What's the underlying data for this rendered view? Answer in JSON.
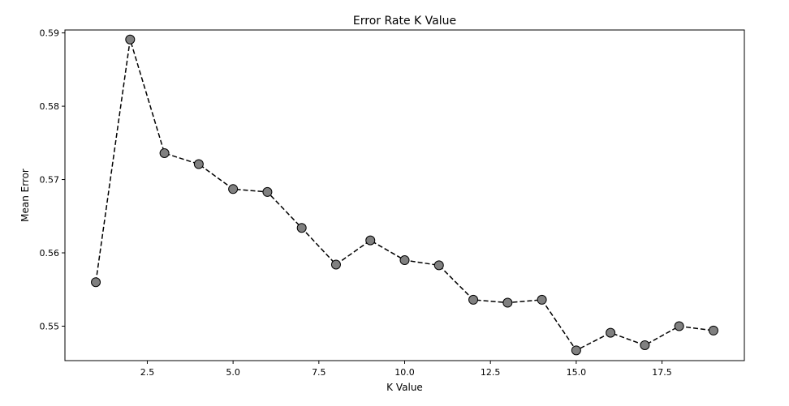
{
  "chart_data": {
    "type": "line",
    "title": "Error Rate K Value",
    "xlabel": "K Value",
    "ylabel": "Mean Error",
    "x": [
      1,
      2,
      3,
      4,
      5,
      6,
      7,
      8,
      9,
      10,
      11,
      12,
      13,
      14,
      15,
      16,
      17,
      18,
      19
    ],
    "series": [
      {
        "values": [
          0.556,
          0.5891,
          0.5736,
          0.5721,
          0.5687,
          0.5683,
          0.5634,
          0.5584,
          0.5617,
          0.559,
          0.5583,
          0.5536,
          0.5532,
          0.5536,
          0.5467,
          0.5491,
          0.5474,
          0.55,
          0.5494
        ],
        "line_style": "dashed",
        "line_color": "#000000",
        "marker": "circle",
        "marker_face_color": "#808080",
        "marker_edge_color": "#000000"
      }
    ],
    "xlim": [
      0.1,
      19.9
    ],
    "ylim": [
      0.5453,
      0.5904
    ],
    "xticks": [
      2.5,
      5.0,
      7.5,
      10.0,
      12.5,
      15.0,
      17.5
    ],
    "xtick_labels": [
      "2.5",
      "5.0",
      "7.5",
      "10.0",
      "12.5",
      "15.0",
      "17.5"
    ],
    "yticks": [
      0.55,
      0.56,
      0.57,
      0.58,
      0.59
    ],
    "ytick_labels": [
      "0.55",
      "0.56",
      "0.57",
      "0.58",
      "0.59"
    ],
    "grid": false,
    "legend": "none"
  }
}
